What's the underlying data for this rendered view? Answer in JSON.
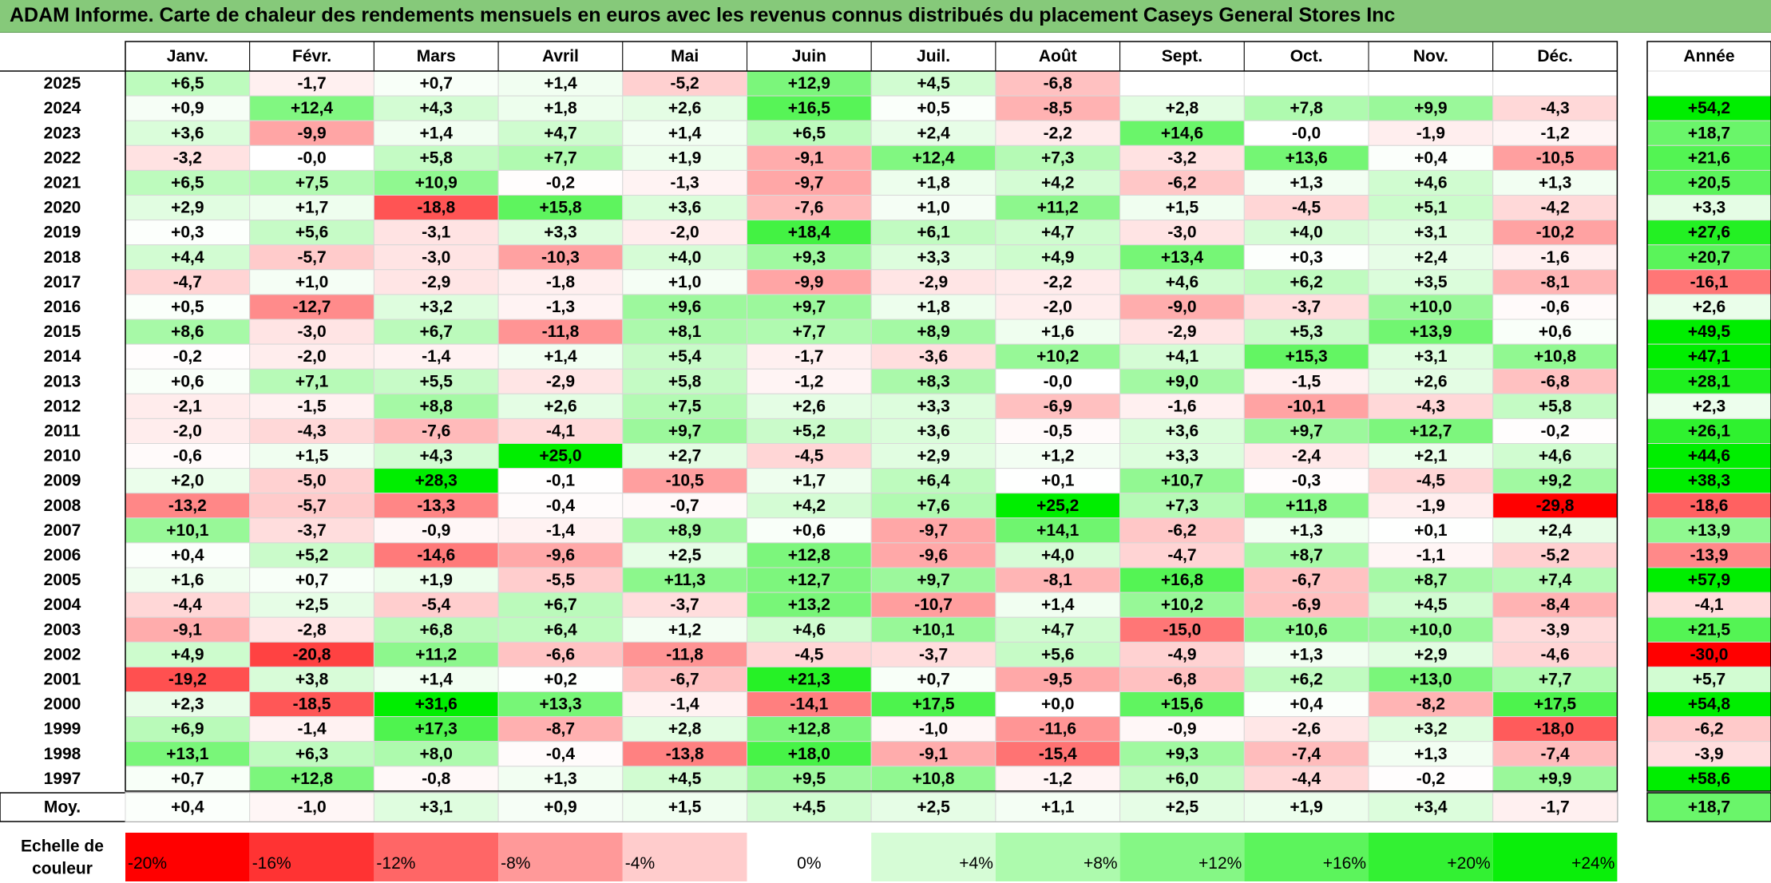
{
  "title": "ADAM Informe. Carte de chaleur des rendements mensuels en euros avec les revenus connus distribués du placement Caseys General Stores Inc",
  "chart_data": {
    "type": "heatmap",
    "months": [
      "Janv.",
      "Févr.",
      "Mars",
      "Avril",
      "Mai",
      "Juin",
      "Juil.",
      "Août",
      "Sept.",
      "Oct.",
      "Nov.",
      "Déc."
    ],
    "year_header": "Année",
    "rows": [
      {
        "year": "2025",
        "values": [
          "+6,5",
          "-1,7",
          "+0,7",
          "+1,4",
          "-5,2",
          "+12,9",
          "+4,5",
          "-6,8",
          "",
          "",
          "",
          ""
        ],
        "annual": ""
      },
      {
        "year": "2024",
        "values": [
          "+0,9",
          "+12,4",
          "+4,3",
          "+1,8",
          "+2,6",
          "+16,5",
          "+0,5",
          "-8,5",
          "+2,8",
          "+7,8",
          "+9,9",
          "-4,3"
        ],
        "annual": "+54,2"
      },
      {
        "year": "2023",
        "values": [
          "+3,6",
          "-9,9",
          "+1,4",
          "+4,7",
          "+1,4",
          "+6,5",
          "+2,4",
          "-2,2",
          "+14,6",
          "-0,0",
          "-1,9",
          "-1,2"
        ],
        "annual": "+18,7"
      },
      {
        "year": "2022",
        "values": [
          "-3,2",
          "-0,0",
          "+5,8",
          "+7,7",
          "+1,9",
          "-9,1",
          "+12,4",
          "+7,3",
          "-3,2",
          "+13,6",
          "+0,4",
          "-10,5"
        ],
        "annual": "+21,6"
      },
      {
        "year": "2021",
        "values": [
          "+6,5",
          "+7,5",
          "+10,9",
          "-0,2",
          "-1,3",
          "-9,7",
          "+1,8",
          "+4,2",
          "-6,2",
          "+1,3",
          "+4,6",
          "+1,3"
        ],
        "annual": "+20,5"
      },
      {
        "year": "2020",
        "values": [
          "+2,9",
          "+1,7",
          "-18,8",
          "+15,8",
          "+3,6",
          "-7,6",
          "+1,0",
          "+11,2",
          "+1,5",
          "-4,5",
          "+5,1",
          "-4,2"
        ],
        "annual": "+3,3"
      },
      {
        "year": "2019",
        "values": [
          "+0,3",
          "+5,6",
          "-3,1",
          "+3,3",
          "-2,0",
          "+18,4",
          "+6,1",
          "+4,7",
          "-3,0",
          "+4,0",
          "+3,1",
          "-10,2"
        ],
        "annual": "+27,6"
      },
      {
        "year": "2018",
        "values": [
          "+4,4",
          "-5,7",
          "-3,0",
          "-10,3",
          "+4,0",
          "+9,3",
          "+3,3",
          "+4,9",
          "+13,4",
          "+0,3",
          "+2,4",
          "-1,6"
        ],
        "annual": "+20,7"
      },
      {
        "year": "2017",
        "values": [
          "-4,7",
          "+1,0",
          "-2,9",
          "-1,8",
          "+1,0",
          "-9,9",
          "-2,9",
          "-2,2",
          "+4,6",
          "+6,2",
          "+3,5",
          "-8,1"
        ],
        "annual": "-16,1"
      },
      {
        "year": "2016",
        "values": [
          "+0,5",
          "-12,7",
          "+3,2",
          "-1,3",
          "+9,6",
          "+9,7",
          "+1,8",
          "-2,0",
          "-9,0",
          "-3,7",
          "+10,0",
          "-0,6"
        ],
        "annual": "+2,6"
      },
      {
        "year": "2015",
        "values": [
          "+8,6",
          "-3,0",
          "+6,7",
          "-11,8",
          "+8,1",
          "+7,7",
          "+8,9",
          "+1,6",
          "-2,9",
          "+5,3",
          "+13,9",
          "+0,6"
        ],
        "annual": "+49,5"
      },
      {
        "year": "2014",
        "values": [
          "-0,2",
          "-2,0",
          "-1,4",
          "+1,4",
          "+5,4",
          "-1,7",
          "-3,6",
          "+10,2",
          "+4,1",
          "+15,3",
          "+3,1",
          "+10,8"
        ],
        "annual": "+47,1"
      },
      {
        "year": "2013",
        "values": [
          "+0,6",
          "+7,1",
          "+5,5",
          "-2,9",
          "+5,8",
          "-1,2",
          "+8,3",
          "-0,0",
          "+9,0",
          "-1,5",
          "+2,6",
          "-6,8"
        ],
        "annual": "+28,1"
      },
      {
        "year": "2012",
        "values": [
          "-2,1",
          "-1,5",
          "+8,8",
          "+2,6",
          "+7,5",
          "+2,6",
          "+3,3",
          "-6,9",
          "-1,6",
          "-10,1",
          "-4,3",
          "+5,8"
        ],
        "annual": "+2,3"
      },
      {
        "year": "2011",
        "values": [
          "-2,0",
          "-4,3",
          "-7,6",
          "-4,1",
          "+9,7",
          "+5,2",
          "+3,6",
          "-0,5",
          "+3,6",
          "+9,7",
          "+12,7",
          "-0,2"
        ],
        "annual": "+26,1"
      },
      {
        "year": "2010",
        "values": [
          "-0,6",
          "+1,5",
          "+4,3",
          "+25,0",
          "+2,7",
          "-4,5",
          "+2,9",
          "+1,2",
          "+3,3",
          "-2,4",
          "+2,1",
          "+4,6"
        ],
        "annual": "+44,6"
      },
      {
        "year": "2009",
        "values": [
          "+2,0",
          "-5,0",
          "+28,3",
          "-0,1",
          "-10,5",
          "+1,7",
          "+6,4",
          "+0,1",
          "+10,7",
          "-0,3",
          "-4,5",
          "+9,2"
        ],
        "annual": "+38,3"
      },
      {
        "year": "2008",
        "values": [
          "-13,2",
          "-5,7",
          "-13,3",
          "-0,4",
          "-0,7",
          "+4,2",
          "+7,6",
          "+25,2",
          "+7,3",
          "+11,8",
          "-1,9",
          "-29,8"
        ],
        "annual": "-18,6"
      },
      {
        "year": "2007",
        "values": [
          "+10,1",
          "-3,7",
          "-0,9",
          "-1,4",
          "+8,9",
          "+0,6",
          "-9,7",
          "+14,1",
          "-6,2",
          "+1,3",
          "+0,1",
          "+2,4"
        ],
        "annual": "+13,9"
      },
      {
        "year": "2006",
        "values": [
          "+0,4",
          "+5,2",
          "-14,6",
          "-9,6",
          "+2,5",
          "+12,8",
          "-9,6",
          "+4,0",
          "-4,7",
          "+8,7",
          "-1,1",
          "-5,2"
        ],
        "annual": "-13,9"
      },
      {
        "year": "2005",
        "values": [
          "+1,6",
          "+0,7",
          "+1,9",
          "-5,5",
          "+11,3",
          "+12,7",
          "+9,7",
          "-8,1",
          "+16,8",
          "-6,7",
          "+8,7",
          "+7,4"
        ],
        "annual": "+57,9"
      },
      {
        "year": "2004",
        "values": [
          "-4,4",
          "+2,5",
          "-5,4",
          "+6,7",
          "-3,7",
          "+13,2",
          "-10,7",
          "+1,4",
          "+10,2",
          "-6,9",
          "+4,5",
          "-8,4"
        ],
        "annual": "-4,1"
      },
      {
        "year": "2003",
        "values": [
          "-9,1",
          "-2,8",
          "+6,8",
          "+6,4",
          "+1,2",
          "+4,6",
          "+10,1",
          "+4,7",
          "-15,0",
          "+10,6",
          "+10,0",
          "-3,9"
        ],
        "annual": "+21,5"
      },
      {
        "year": "2002",
        "values": [
          "+4,9",
          "-20,8",
          "+11,2",
          "-6,6",
          "-11,8",
          "-4,5",
          "-3,7",
          "+5,6",
          "-4,9",
          "+1,3",
          "+2,9",
          "-4,6"
        ],
        "annual": "-30,0"
      },
      {
        "year": "2001",
        "values": [
          "-19,2",
          "+3,8",
          "+1,4",
          "+0,2",
          "-6,7",
          "+21,3",
          "+0,7",
          "-9,5",
          "-6,8",
          "+6,2",
          "+13,0",
          "+7,7"
        ],
        "annual": "+5,7"
      },
      {
        "year": "2000",
        "values": [
          "+2,3",
          "-18,5",
          "+31,6",
          "+13,3",
          "-1,4",
          "-14,1",
          "+17,5",
          "+0,0",
          "+15,6",
          "+0,4",
          "-8,2",
          "+17,5"
        ],
        "annual": "+54,8"
      },
      {
        "year": "1999",
        "values": [
          "+6,9",
          "-1,4",
          "+17,3",
          "-8,7",
          "+2,8",
          "+12,8",
          "-1,0",
          "-11,6",
          "-0,9",
          "-2,6",
          "+3,2",
          "-18,0"
        ],
        "annual": "-6,2"
      },
      {
        "year": "1998",
        "values": [
          "+13,1",
          "+6,3",
          "+8,0",
          "-0,4",
          "-13,8",
          "+18,0",
          "-9,1",
          "-15,4",
          "+9,3",
          "-7,4",
          "+1,3",
          "-7,4"
        ],
        "annual": "-3,9"
      },
      {
        "year": "1997",
        "values": [
          "+0,7",
          "+12,8",
          "-0,8",
          "+1,3",
          "+4,5",
          "+9,5",
          "+10,8",
          "-1,2",
          "+6,0",
          "-4,4",
          "-0,2",
          "+9,9"
        ],
        "annual": "+58,6"
      }
    ],
    "average": {
      "label": "Moy.",
      "values": [
        "+0,4",
        "-1,0",
        "+3,1",
        "+0,9",
        "+1,5",
        "+4,5",
        "+2,5",
        "+1,1",
        "+2,5",
        "+1,9",
        "+3,4",
        "-1,7"
      ],
      "annual": "+18,7"
    },
    "scale": {
      "label_line1": "Echelle de",
      "label_line2": "couleur",
      "stops": [
        "-20%",
        "-16%",
        "-12%",
        "-8%",
        "-4%",
        "0%",
        "+4%",
        "+8%",
        "+12%",
        "+16%",
        "+20%",
        "+24%"
      ]
    },
    "colors": {
      "negative_max": "#ff0000",
      "neutral": "#ffffff",
      "positive_max": "#00ee00",
      "title_bar": "#86c97a"
    }
  }
}
